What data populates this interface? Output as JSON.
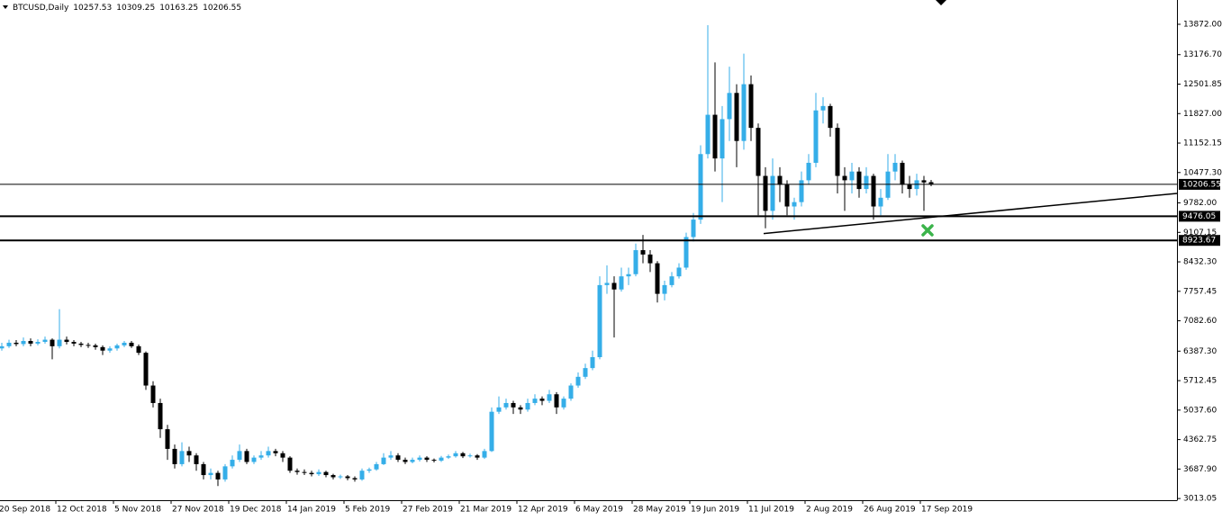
{
  "chart_data": {
    "type": "candlestick",
    "title": "BTCUSD,Daily",
    "up_color": "#35aee8",
    "down_color": "#000000",
    "x": [
      0,
      2,
      4,
      6,
      8,
      10,
      12,
      14,
      16,
      18,
      20,
      22,
      24,
      26,
      28,
      30,
      32,
      34,
      36,
      38,
      40,
      42,
      44,
      46,
      48,
      50,
      52,
      54,
      56,
      58,
      60,
      62,
      64,
      66,
      68,
      70,
      72,
      74,
      76,
      78,
      80,
      82,
      84,
      86,
      88,
      90,
      92,
      94,
      96,
      98,
      100,
      102,
      104,
      106,
      108,
      110,
      112,
      114,
      116,
      118,
      120,
      122,
      124,
      126,
      128,
      130,
      132,
      134,
      136,
      138,
      140,
      142,
      144,
      146,
      148,
      150,
      152,
      154,
      156,
      158,
      160,
      162,
      164,
      166,
      168,
      170,
      172,
      174,
      176,
      178,
      180,
      182,
      184,
      186,
      188,
      190,
      192,
      194,
      196,
      198,
      200,
      202,
      204,
      206,
      208,
      210,
      212,
      214,
      216,
      218,
      220,
      222,
      224,
      226,
      228,
      230,
      232,
      234,
      236,
      238,
      240,
      242,
      244,
      246,
      248,
      250,
      252,
      254,
      256,
      258
    ],
    "open": [
      6450,
      6500,
      6580,
      6550,
      6620,
      6560,
      6600,
      6650,
      6500,
      6650,
      6600,
      6560,
      6530,
      6520,
      6480,
      6400,
      6450,
      6520,
      6580,
      6500,
      6350,
      5600,
      5200,
      4600,
      4150,
      3800,
      4100,
      4000,
      3800,
      3550,
      3600,
      3450,
      3750,
      3900,
      4100,
      3850,
      3950,
      4000,
      4100,
      4050,
      3950,
      3650,
      3620,
      3600,
      3570,
      3620,
      3550,
      3500,
      3520,
      3480,
      3450,
      3650,
      3680,
      3800,
      3950,
      4000,
      3900,
      3850,
      3900,
      3950,
      3900,
      3880,
      3950,
      3980,
      4050,
      3980,
      4000,
      3950,
      4100,
      5000,
      5100,
      5200,
      5100,
      5050,
      5200,
      5300,
      5250,
      5400,
      5100,
      5300,
      5600,
      5800,
      6000,
      6250,
      7900,
      7950,
      7800,
      8100,
      8150,
      8700,
      8600,
      8400,
      7700,
      7900,
      8100,
      8300,
      9000,
      9400,
      10900,
      11800,
      10800,
      11700,
      12300,
      11200,
      12500,
      11500,
      10400,
      9600,
      10400,
      10200,
      9700,
      9800,
      10300,
      10700,
      11900,
      12000,
      11500,
      10400,
      10300,
      10500,
      10100,
      10400,
      9700,
      9900,
      10500,
      10700,
      10200,
      10100,
      10300,
      10257.53
    ],
    "high": [
      6580,
      6650,
      6640,
      6700,
      6680,
      6660,
      6720,
      6680,
      7350,
      6720,
      6640,
      6600,
      6580,
      6560,
      6520,
      6500,
      6560,
      6620,
      6620,
      6540,
      6380,
      5700,
      5300,
      4700,
      4250,
      4300,
      4200,
      4050,
      3850,
      3700,
      3650,
      3800,
      4000,
      4250,
      4150,
      4000,
      4100,
      4200,
      4150,
      4100,
      3980,
      3700,
      3680,
      3650,
      3680,
      3650,
      3580,
      3560,
      3550,
      3520,
      3700,
      3720,
      3850,
      4050,
      4100,
      4050,
      3950,
      3950,
      4000,
      3980,
      3930,
      3990,
      4020,
      4100,
      4080,
      4040,
      4030,
      4150,
      5100,
      5350,
      5300,
      5250,
      5150,
      5300,
      5400,
      5350,
      5500,
      5450,
      5350,
      5650,
      5900,
      6100,
      6400,
      8100,
      8350,
      8100,
      8300,
      8300,
      8850,
      9050,
      8700,
      8450,
      8000,
      8200,
      8400,
      9100,
      9550,
      11100,
      13850,
      13000,
      12000,
      12900,
      12500,
      13200,
      12700,
      11600,
      10600,
      10800,
      10600,
      10300,
      9900,
      10500,
      10900,
      12300,
      12200,
      12050,
      11600,
      10600,
      10700,
      10600,
      10600,
      10450,
      10100,
      10900,
      10900,
      10750,
      10400,
      10450,
      10400,
      10309.25
    ],
    "low": [
      6400,
      6460,
      6500,
      6500,
      6500,
      6520,
      6560,
      6200,
      6450,
      6540,
      6500,
      6480,
      6460,
      6420,
      6300,
      6350,
      6400,
      6480,
      6460,
      6300,
      5500,
      5100,
      4400,
      3900,
      3700,
      3750,
      3850,
      3650,
      3450,
      3450,
      3300,
      3400,
      3700,
      3850,
      3800,
      3800,
      3900,
      3950,
      3980,
      3850,
      3600,
      3560,
      3550,
      3520,
      3530,
      3500,
      3450,
      3460,
      3430,
      3400,
      3420,
      3600,
      3650,
      3780,
      3900,
      3850,
      3800,
      3820,
      3860,
      3850,
      3840,
      3850,
      3920,
      3950,
      3940,
      3950,
      3900,
      3920,
      4080,
      4950,
      5050,
      4950,
      4950,
      5000,
      5150,
      5150,
      5200,
      4950,
      5050,
      5250,
      5550,
      5750,
      5950,
      6200,
      7700,
      6700,
      7750,
      7900,
      8100,
      8400,
      8200,
      7500,
      7550,
      7850,
      8050,
      8250,
      8900,
      9300,
      10800,
      10500,
      9800,
      11200,
      10600,
      11000,
      11200,
      9500,
      9200,
      9400,
      9800,
      9500,
      9400,
      9700,
      10200,
      10600,
      11600,
      11300,
      10000,
      9600,
      10000,
      9900,
      10000,
      9400,
      9500,
      9850,
      10300,
      10000,
      9900,
      9950,
      9600,
      10163.25
    ],
    "close": [
      6500,
      6580,
      6550,
      6620,
      6560,
      6600,
      6650,
      6500,
      6650,
      6600,
      6560,
      6530,
      6520,
      6480,
      6400,
      6450,
      6520,
      6580,
      6500,
      6350,
      5600,
      5200,
      4600,
      4150,
      3800,
      4100,
      4000,
      3800,
      3550,
      3600,
      3450,
      3750,
      3900,
      4100,
      3850,
      3950,
      4000,
      4100,
      4050,
      3950,
      3650,
      3620,
      3600,
      3570,
      3620,
      3550,
      3500,
      3520,
      3480,
      3450,
      3650,
      3680,
      3800,
      3950,
      4000,
      3900,
      3850,
      3900,
      3950,
      3900,
      3880,
      3950,
      3980,
      4050,
      3980,
      4000,
      3950,
      4100,
      5000,
      5100,
      5200,
      5100,
      5050,
      5200,
      5300,
      5250,
      5400,
      5100,
      5300,
      5600,
      5800,
      6000,
      6250,
      7900,
      7950,
      7800,
      8100,
      8150,
      8700,
      8600,
      8400,
      7700,
      7900,
      8100,
      8300,
      9000,
      9400,
      10900,
      11800,
      10800,
      11700,
      12300,
      11200,
      12500,
      11500,
      10400,
      9600,
      10400,
      10200,
      9700,
      9800,
      10300,
      10700,
      11900,
      12000,
      11500,
      10400,
      10300,
      10500,
      10100,
      10400,
      9700,
      9900,
      10500,
      10700,
      10200,
      10100,
      10300,
      10250,
      10206.55
    ],
    "xlim": [
      -0.5,
      326.25
    ],
    "xticks": [
      {
        "value": -1,
        "label": "20 Sep 2018"
      },
      {
        "value": 15,
        "label": "12 Oct 2018"
      },
      {
        "value": 31,
        "label": "5 Nov 2018"
      },
      {
        "value": 47,
        "label": "27 Nov 2018"
      },
      {
        "value": 63,
        "label": "19 Dec 2018"
      },
      {
        "value": 79,
        "label": "14 Jan 2019"
      },
      {
        "value": 95,
        "label": "5 Feb 2019"
      },
      {
        "value": 111,
        "label": "27 Feb 2019"
      },
      {
        "value": 127,
        "label": "21 Mar 2019"
      },
      {
        "value": 143,
        "label": "12 Apr 2019"
      },
      {
        "value": 159,
        "label": "6 May 2019"
      },
      {
        "value": 175,
        "label": "28 May 2019"
      },
      {
        "value": 191,
        "label": "19 Jun 2019"
      },
      {
        "value": 207,
        "label": "11 Jul 2019"
      },
      {
        "value": 223,
        "label": "2 Aug 2019"
      },
      {
        "value": 239,
        "label": "26 Aug 2019"
      },
      {
        "value": 255,
        "label": "17 Sep 2019"
      }
    ],
    "ylim": [
      2974.4,
      14428
    ],
    "yticks": [
      {
        "value": 13872,
        "label": "13872.00"
      },
      {
        "value": 13176.7,
        "label": "13176.70"
      },
      {
        "value": 12501.85,
        "label": "12501.85"
      },
      {
        "value": 11827,
        "label": "11827.00"
      },
      {
        "value": 11152.15,
        "label": "11152.15"
      },
      {
        "value": 10477.3,
        "label": "10477.30"
      },
      {
        "value": 9782,
        "label": "9782.00"
      },
      {
        "value": 9107.15,
        "label": "9107.15"
      },
      {
        "value": 8432.3,
        "label": "8432.30"
      },
      {
        "value": 7757.45,
        "label": "7757.45"
      },
      {
        "value": 7082.6,
        "label": "7082.60"
      },
      {
        "value": 6387.3,
        "label": "6387.30"
      },
      {
        "value": 5712.45,
        "label": "5712.45"
      },
      {
        "value": 5037.6,
        "label": "5037.60"
      },
      {
        "value": 4362.75,
        "label": "4362.75"
      },
      {
        "value": 3687.9,
        "label": "3687.90"
      },
      {
        "value": 3013.05,
        "label": "3013.05"
      }
    ],
    "levels": [
      {
        "value": 10206.55,
        "width": 1
      },
      {
        "value": 9476.05,
        "width": 2
      },
      {
        "value": 8923.67,
        "width": 2
      }
    ],
    "trendline": {
      "x": [
        211.5,
        326.25
      ],
      "y": [
        9080,
        10000
      ]
    },
    "marker": {
      "x": 257,
      "y": 9154,
      "color": "#3cb44b"
    }
  }
}
